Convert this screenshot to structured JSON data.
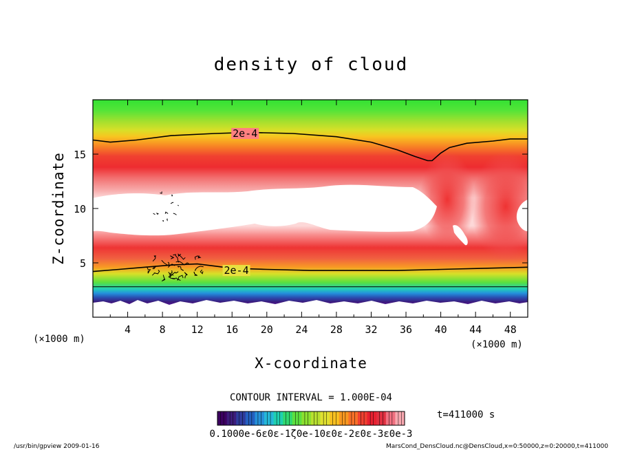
{
  "chart_data": {
    "type": "heatmap",
    "title": "density of cloud",
    "xlabel": "X-coordinate",
    "ylabel": "Z-coordinate",
    "x_unit": "(×1000 m)",
    "x_unit_right": "(×1000 m)",
    "y_unit": "(×1000 m)",
    "xlim": [
      0,
      50
    ],
    "ylim": [
      0,
      20
    ],
    "x_ticks": [
      4,
      8,
      12,
      16,
      20,
      24,
      28,
      32,
      36,
      40,
      44,
      48
    ],
    "x_tick_labels": [
      "4",
      "8",
      "12",
      "16",
      "20",
      "24",
      "28",
      "32",
      "36",
      "40",
      "44",
      "48"
    ],
    "y_ticks": [
      5,
      10,
      15
    ],
    "y_tick_labels": [
      "5",
      "10",
      "15"
    ],
    "contour_labels": [
      {
        "text": "2e-4",
        "x": 17.5,
        "z": 16.9
      },
      {
        "text": "2e-4",
        "x": 16.5,
        "z": 4.3
      }
    ],
    "upper_contour": {
      "level": "2e-4",
      "points": [
        [
          0,
          16.3
        ],
        [
          2,
          16.1
        ],
        [
          5,
          16.3
        ],
        [
          9,
          16.7
        ],
        [
          14,
          16.9
        ],
        [
          18,
          17.0
        ],
        [
          23,
          16.9
        ],
        [
          28,
          16.6
        ],
        [
          32,
          16.1
        ],
        [
          35,
          15.4
        ],
        [
          37,
          14.8
        ],
        [
          38.5,
          14.4
        ],
        [
          39,
          14.4
        ],
        [
          40,
          15.1
        ],
        [
          41,
          15.6
        ],
        [
          43,
          16.0
        ],
        [
          46,
          16.2
        ],
        [
          48,
          16.4
        ],
        [
          50,
          16.4
        ]
      ]
    },
    "lower_contour": {
      "level": "2e-4",
      "points": [
        [
          0,
          4.2
        ],
        [
          3,
          4.4
        ],
        [
          6,
          4.6
        ],
        [
          9,
          4.8
        ],
        [
          12,
          4.9
        ],
        [
          14,
          4.7
        ],
        [
          16,
          4.5
        ],
        [
          20,
          4.4
        ],
        [
          25,
          4.3
        ],
        [
          30,
          4.3
        ],
        [
          35,
          4.3
        ],
        [
          40,
          4.4
        ],
        [
          45,
          4.5
        ],
        [
          50,
          4.6
        ]
      ]
    },
    "contour_interval": "CONTOUR INTERVAL = 1.000E-04",
    "time": "t=411000 s",
    "colorbar_min_label": "0.1000",
    "colorbar_labels_text": "0.1000e-6ε0ε-1ζ0e-10ε0ε-2ε0ε-3ε0e-3",
    "colorbar_colors": [
      "#3c0060",
      "#3c1c7a",
      "#2e3c9c",
      "#2460c0",
      "#2690d8",
      "#26b8d8",
      "#20d0b0",
      "#30d870",
      "#5ce040",
      "#8ce030",
      "#b8e030",
      "#e0e030",
      "#f8c020",
      "#f89820",
      "#f87028",
      "#f04030",
      "#e82030",
      "#e03040",
      "#f07080",
      "#f8a8b0"
    ]
  },
  "footer": {
    "left": "/usr/bin/gpview   2009-01-16",
    "right": "MarsCond_DensCloud.nc@DensCloud,x=0:50000,z=0:20000,t=411000"
  }
}
